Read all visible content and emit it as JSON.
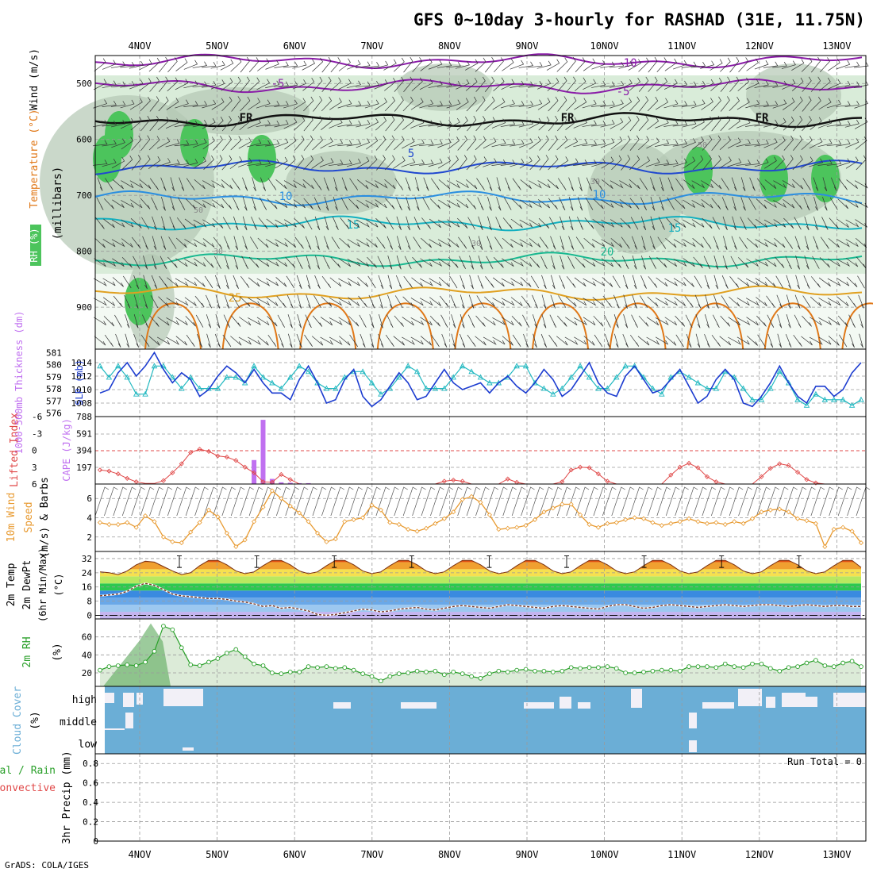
{
  "title": "GFS 0~10day 3-hourly for RASHAD (31E, 11.75N)",
  "credit": "GrADS: COLA/IGES",
  "x_axis": {
    "date_labels": [
      "4NOV",
      "5NOV",
      "6NOV",
      "7NOV",
      "8NOV",
      "9NOV",
      "10NOV",
      "11NOV",
      "12NOV",
      "13NOV"
    ]
  },
  "colors": {
    "rh_light": "#d9ecd9",
    "rh_mid": "#b4c8b4",
    "rh_green": "#4cc45c",
    "temp_m10": "#8a1ca8",
    "temp_m5": "#8a1ca8",
    "temp_0": "#111111",
    "temp_5": "#2048d0",
    "temp_10": "#2a8ee0",
    "temp_15": "#12b0c0",
    "temp_20": "#18b890",
    "temp_25": "#e0a020",
    "temp_30": "#e07818",
    "slp": "#1c3cd0",
    "thickness": "#20b8c0",
    "lifted": "#e04848",
    "cape": "#c070f0",
    "wind10": "#e89a30",
    "rh2m": "#2aa02a",
    "cloud": "#6baed6",
    "dew": "#7a3a2a"
  },
  "chart_data": [
    {
      "type": "contour",
      "panel": "upper-air",
      "ylabel": [
        "RH (%)",
        "Temperature (°C)",
        "Wind (m/s)",
        "(millibars)"
      ],
      "y_ticks": [
        500,
        600,
        700,
        800,
        900
      ],
      "ylim": [
        975,
        450
      ],
      "contour_labels": {
        "temp": [
          "-10",
          "-5",
          "-5",
          "FR",
          "FR",
          "FR",
          "5",
          "10",
          "10",
          "15",
          "15",
          "20",
          "25"
        ],
        "rh": [
          "50",
          "30",
          "30",
          "50",
          "30"
        ]
      },
      "series": [
        {
          "name": "-10",
          "level_hpa": 460
        },
        {
          "name": "-5",
          "level_hpa": 505
        },
        {
          "name": "FR",
          "level_hpa": 565
        },
        {
          "name": "5",
          "level_hpa": 650
        },
        {
          "name": "10",
          "level_hpa": 705
        },
        {
          "name": "15",
          "level_hpa": 750
        },
        {
          "name": "20",
          "level_hpa": 815
        },
        {
          "name": "25",
          "level_hpa": 875
        }
      ]
    },
    {
      "type": "line",
      "panel": "thickness-slp",
      "ylabel_left": "1000-500mb Thickness (dm)",
      "ylabel_right": "SLP (mb)",
      "left_ticks": [
        "581",
        "580",
        "579",
        "578",
        "577",
        "576"
      ],
      "right_ticks": [
        "1014",
        "1012",
        "1010",
        "1008"
      ],
      "ylim_slp": [
        1006,
        1016
      ],
      "slp": [
        1009.5,
        1010.0,
        1012.5,
        1014.0,
        1012.0,
        1013.5,
        1015.5,
        1013.0,
        1011.0,
        1012.5,
        1011.5,
        1009.0,
        1010.0,
        1012.0,
        1013.5,
        1012.5,
        1011.0,
        1013.0,
        1011.0,
        1009.5,
        1009.5,
        1008.5,
        1011.5,
        1013.5,
        1011.0,
        1008.0,
        1008.5,
        1011.5,
        1013.0,
        1009.0,
        1007.5,
        1008.5,
        1010.5,
        1012.5,
        1011.0,
        1008.5,
        1009.0,
        1011.0,
        1013.0,
        1011.0,
        1010.0,
        1010.5,
        1011.0,
        1009.5,
        1011.0,
        1012.0,
        1010.5,
        1009.5,
        1011.0,
        1013.0,
        1011.5,
        1009.0,
        1010.0,
        1012.0,
        1014.0,
        1011.0,
        1009.5,
        1009.0,
        1012.0,
        1013.5,
        1011.5,
        1009.5,
        1010.0,
        1011.5,
        1013.0,
        1010.5,
        1008.0,
        1009.0,
        1011.5,
        1013.0,
        1011.5,
        1008.0,
        1007.5,
        1009.0,
        1011.0,
        1013.5,
        1011.0,
        1009.0,
        1008.0,
        1010.5,
        1010.5,
        1009.0,
        1010.0,
        1012.5,
        1014.0
      ],
      "thickness": [
        580.0,
        579.0,
        580.0,
        579.0,
        577.5,
        577.5,
        580.0,
        580.0,
        579.0,
        578.0,
        579.0,
        578.0,
        578.0,
        578.0,
        579.0,
        579.0,
        578.5,
        580.0,
        579.0,
        578.5,
        578.0,
        579.0,
        580.0,
        579.5,
        578.5,
        578.0,
        578.0,
        579.0,
        579.5,
        579.5,
        578.5,
        577.5,
        578.0,
        579.0,
        580.0,
        579.5,
        578.0,
        578.0,
        578.0,
        579.0,
        580.0,
        579.5,
        579.0,
        578.5,
        578.5,
        579.0,
        580.0,
        580.0,
        578.5,
        578.0,
        577.5,
        578.0,
        579.0,
        580.0,
        579.0,
        578.0,
        578.0,
        579.0,
        580.0,
        580.0,
        579.0,
        578.0,
        577.5,
        579.0,
        579.5,
        579.0,
        578.5,
        578.0,
        578.0,
        579.5,
        579.0,
        578.0,
        577.0,
        577.0,
        578.0,
        579.5,
        578.5,
        577.0,
        576.5,
        577.5,
        577.0,
        577.0,
        577.0,
        576.5,
        577.0
      ]
    },
    {
      "type": "bar",
      "panel": "lifted-cape",
      "ylabel_left": "Lifted Index",
      "ylabel_right": "CAPE (J/kg)",
      "left_ticks": [
        "-6",
        "-3",
        "0",
        "3",
        "6"
      ],
      "right_ticks": [
        "788",
        "591",
        "394",
        "197"
      ],
      "cape_ylim": [
        0,
        788
      ],
      "lifted_ylim": [
        6,
        -6
      ],
      "cape": [
        0,
        0,
        0,
        0,
        0,
        0,
        0,
        0,
        0,
        0,
        0,
        0,
        0,
        0,
        0,
        0,
        0,
        280,
        750,
        60,
        20,
        15,
        10,
        10,
        0,
        0,
        0,
        0,
        0,
        0,
        0,
        0,
        0,
        0,
        0,
        0,
        0,
        0,
        0,
        0,
        0,
        0,
        0,
        0,
        0,
        0,
        0,
        0,
        0,
        0,
        0,
        0,
        0,
        0,
        0,
        0,
        0,
        0,
        0,
        0,
        0,
        0,
        0,
        0,
        0,
        0,
        0,
        0,
        0,
        0,
        0,
        0,
        0,
        0,
        0,
        0,
        0,
        0,
        0,
        0,
        0,
        0,
        0,
        0,
        0
      ],
      "lifted": [
        3.5,
        3.7,
        4.2,
        5.0,
        5.6,
        5.9,
        5.9,
        5.4,
        4.0,
        2.4,
        0.4,
        -0.2,
        0.2,
        1.0,
        1.2,
        1.8,
        3.0,
        4.0,
        5.6,
        5.7,
        4.3,
        5.2,
        6.0,
        6.0,
        6.0,
        6.0,
        6.0,
        6.0,
        6.0,
        6.0,
        6.0,
        6.0,
        6.0,
        6.0,
        6.0,
        6.0,
        6.0,
        6.0,
        5.5,
        5.3,
        5.5,
        6.0,
        6.0,
        6.0,
        6.0,
        5.1,
        5.7,
        6.0,
        6.0,
        6.0,
        6.0,
        5.6,
        3.5,
        3.0,
        3.1,
        4.2,
        5.5,
        6.0,
        6.0,
        6.0,
        6.0,
        6.0,
        6.0,
        4.4,
        3.0,
        2.3,
        3.1,
        4.7,
        5.6,
        6.0,
        6.0,
        6.0,
        6.0,
        4.7,
        3.2,
        2.4,
        2.7,
        3.9,
        5.2,
        5.8,
        6.0,
        6.0,
        6.0,
        6.0,
        6.0
      ]
    },
    {
      "type": "line",
      "panel": "wind10m",
      "ylabel": [
        "10m Wind",
        "Speed",
        "(m/s) & Barbs"
      ],
      "ticks": [
        "6",
        "4",
        "2"
      ],
      "ylim": [
        0.5,
        7.5
      ],
      "values": [
        3.5,
        3.3,
        3.3,
        3.5,
        3.0,
        4.2,
        3.6,
        2.0,
        1.5,
        1.4,
        2.5,
        3.5,
        4.8,
        4.1,
        2.4,
        1.0,
        1.7,
        3.6,
        5.1,
        6.8,
        6.0,
        5.2,
        4.5,
        3.6,
        2.4,
        1.5,
        1.8,
        3.6,
        3.8,
        4.0,
        5.3,
        4.8,
        3.5,
        3.3,
        2.8,
        2.6,
        2.9,
        3.4,
        3.9,
        4.6,
        5.9,
        6.2,
        5.6,
        4.3,
        2.8,
        2.9,
        3.0,
        3.2,
        3.8,
        4.6,
        5.0,
        5.4,
        5.4,
        4.3,
        3.3,
        3.0,
        3.4,
        3.5,
        3.8,
        4.0,
        3.9,
        3.5,
        3.2,
        3.4,
        3.6,
        3.9,
        3.6,
        3.4,
        3.5,
        3.3,
        3.6,
        3.4,
        3.9,
        4.6,
        4.8,
        4.9,
        4.6,
        3.9,
        3.7,
        3.4,
        1.0,
        2.8,
        3.0,
        2.6,
        1.4
      ]
    },
    {
      "type": "area",
      "panel": "temp2m",
      "ylabel": [
        "2m Temp",
        "2m DewPt",
        "(6hr Min/Max)",
        "(°C)"
      ],
      "ticks": [
        "32",
        "24",
        "16",
        "8",
        "0"
      ],
      "ylim": [
        -2,
        36
      ],
      "temp": [
        24.5,
        24.0,
        23.0,
        25.0,
        28.5,
        30.5,
        30.0,
        27.5,
        25.0,
        23.0,
        24.0,
        28.0,
        31.0,
        31.0,
        28.5,
        25.0,
        23.5,
        24.5,
        28.0,
        31.0,
        31.0,
        28.5,
        25.0,
        23.5,
        24.5,
        28.0,
        31.0,
        31.0,
        28.5,
        25.0,
        23.5,
        24.5,
        28.0,
        31.0,
        31.0,
        28.5,
        25.0,
        23.5,
        24.5,
        28.0,
        31.0,
        31.0,
        28.5,
        25.0,
        23.5,
        24.5,
        28.0,
        31.0,
        31.0,
        28.5,
        25.0,
        23.5,
        24.5,
        28.0,
        31.0,
        31.0,
        28.5,
        25.0,
        23.5,
        24.5,
        28.0,
        31.0,
        31.0,
        28.5,
        25.0,
        23.5,
        24.5,
        28.0,
        31.0,
        31.0,
        28.5,
        25.0,
        23.5,
        24.5,
        28.0,
        31.0,
        31.0,
        28.5,
        25.0,
        23.5,
        24.5,
        28.0,
        31.0,
        31.0,
        27.0
      ],
      "dewpoint": [
        11.0,
        11.5,
        12.0,
        13.5,
        16.5,
        18.0,
        17.0,
        14.5,
        12.0,
        11.0,
        10.5,
        10.0,
        9.5,
        9.5,
        9.0,
        8.0,
        7.5,
        6.5,
        5.0,
        5.5,
        4.0,
        4.5,
        3.5,
        2.5,
        0.5,
        0.0,
        0.5,
        1.5,
        2.5,
        3.5,
        3.0,
        2.0,
        2.5,
        3.5,
        4.0,
        4.5,
        3.5,
        3.0,
        4.0,
        5.0,
        5.5,
        5.0,
        4.5,
        4.0,
        5.0,
        6.0,
        5.5,
        5.0,
        4.5,
        4.0,
        5.0,
        5.5,
        5.0,
        4.5,
        4.0,
        3.5,
        5.0,
        6.0,
        6.0,
        5.0,
        4.0,
        4.5,
        5.5,
        6.0,
        5.5,
        5.0,
        4.5,
        5.0,
        5.5,
        6.0,
        5.5,
        5.0,
        5.5,
        6.0,
        6.0,
        5.5,
        5.0,
        5.5,
        6.0,
        5.5,
        5.0,
        5.5,
        5.5,
        5.0,
        5.0
      ]
    },
    {
      "type": "area",
      "panel": "rh2m",
      "ylabel": [
        "2m RH",
        "(%)"
      ],
      "ticks": [
        "60",
        "40",
        "20"
      ],
      "ylim": [
        5,
        80
      ],
      "values": [
        23,
        27,
        28,
        29,
        28,
        32,
        44,
        72,
        68,
        48,
        29,
        28,
        32,
        36,
        42,
        46,
        38,
        30,
        28,
        20,
        19,
        21,
        21,
        27,
        26,
        27,
        25,
        26,
        23,
        19,
        16,
        11,
        16,
        19,
        20,
        22,
        21,
        22,
        18,
        21,
        19,
        16,
        14,
        19,
        22,
        21,
        23,
        24,
        22,
        22,
        21,
        22,
        26,
        25,
        26,
        26,
        27,
        25,
        20,
        20,
        21,
        22,
        23,
        23,
        22,
        27,
        27,
        27,
        26,
        30,
        27,
        26,
        30,
        30,
        25,
        22,
        26,
        27,
        31,
        34,
        28,
        27,
        31,
        33,
        27
      ]
    },
    {
      "type": "heatmap",
      "panel": "cloud-cover",
      "ylabel": [
        "Cloud Cover",
        "(%)"
      ],
      "levels": [
        "high",
        "middle",
        "low"
      ]
    },
    {
      "type": "bar",
      "panel": "precip",
      "ylabel_left": [
        "Total / Rain",
        "Convective"
      ],
      "ylabel": "3hr Precip (mm)",
      "ticks": [
        "0.8",
        "0.6",
        "0.4",
        "0.2",
        "0"
      ],
      "ylim": [
        0,
        0.9
      ],
      "run_total": "Run Total = 0",
      "values": []
    }
  ]
}
